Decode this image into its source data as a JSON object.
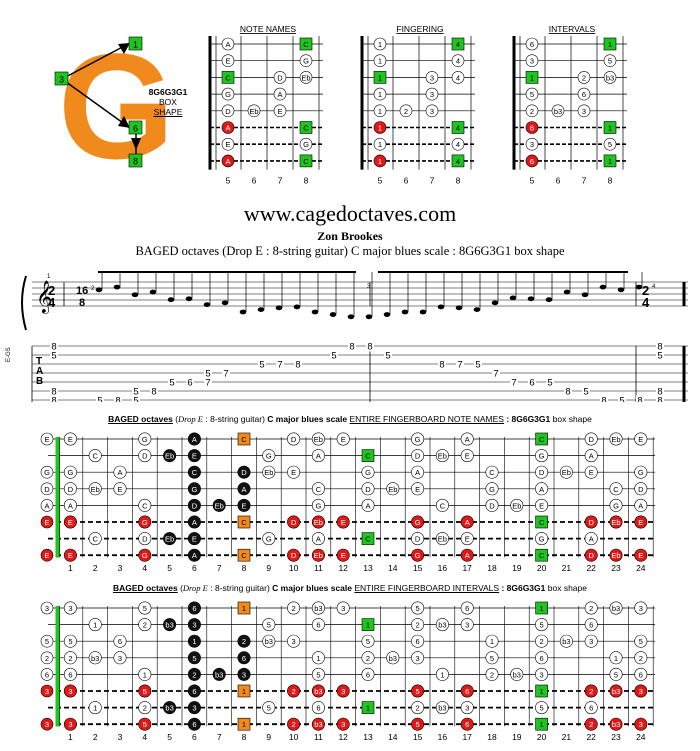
{
  "logo": {
    "letter": "G",
    "code": "8G6G3G1",
    "box_word": "BOX",
    "shape_word": "SHAPE",
    "callouts": [
      "1",
      "3",
      "6",
      "8"
    ],
    "letter_color": "#f08a1c",
    "callout_color": "#1fc51f"
  },
  "panels": [
    {
      "title": "NOTE NAMES",
      "rows": [
        [
          "A",
          null,
          null,
          "C"
        ],
        [
          "E",
          null,
          null,
          "G"
        ],
        [
          "C",
          null,
          "D",
          "Eb"
        ],
        [
          "G",
          null,
          "A",
          null
        ],
        [
          "D",
          "Eb",
          "E",
          null
        ],
        [
          "A",
          null,
          null,
          "C"
        ],
        [
          "E",
          null,
          null,
          "G"
        ],
        [
          "A",
          null,
          null,
          "C"
        ]
      ],
      "frets": [
        "5",
        "6",
        "7",
        "8"
      ]
    },
    {
      "title": "FINGERING",
      "rows": [
        [
          "1",
          null,
          null,
          "4"
        ],
        [
          "1",
          null,
          null,
          "4"
        ],
        [
          "1",
          null,
          "3",
          "4"
        ],
        [
          "1",
          null,
          "3",
          null
        ],
        [
          "1",
          "2",
          "3",
          null
        ],
        [
          "1",
          null,
          null,
          "4"
        ],
        [
          "1",
          null,
          null,
          "4"
        ],
        [
          "1",
          null,
          null,
          "4"
        ]
      ],
      "frets": [
        "5",
        "6",
        "7",
        "8"
      ]
    },
    {
      "title": "INTERVALS",
      "rows": [
        [
          "6",
          null,
          null,
          "1"
        ],
        [
          "3",
          null,
          null,
          "5"
        ],
        [
          "1",
          null,
          "2",
          "b3"
        ],
        [
          "5",
          null,
          "6",
          null
        ],
        [
          "2",
          "b3",
          "3",
          null
        ],
        [
          "6",
          null,
          null,
          "1"
        ],
        [
          "3",
          null,
          null,
          "5"
        ],
        [
          "6",
          null,
          null,
          "1"
        ]
      ],
      "frets": [
        "5",
        "6",
        "7",
        "8"
      ]
    }
  ],
  "website": "www.cagedoctaves.com",
  "author": "Zon Brookes",
  "subtitle": "BAGED octaves (Drop E : 8-string guitar) C major blues scale : 8G6G3G1 box shape",
  "staff": {
    "time_start": [
      "2",
      "4"
    ],
    "time_mid": [
      "16",
      "8"
    ],
    "time_end": [
      "2",
      "4"
    ],
    "tab_letters": [
      "T",
      "A",
      "B"
    ],
    "tuning_label": "E-GS",
    "measure_numbers": [
      "1",
      "2",
      "3",
      "4"
    ],
    "tab_strings": [
      [
        "8",
        "",
        "",
        "",
        "",
        "",
        "",
        "",
        "",
        "",
        "",
        "",
        "",
        "",
        "",
        "8",
        "8",
        "",
        "",
        "",
        "",
        "",
        "",
        "",
        "",
        "",
        "",
        "",
        "",
        "",
        "",
        "",
        "8"
      ],
      [
        "5",
        "",
        "",
        "",
        "",
        "",
        "",
        "",
        "",
        "",
        "",
        "",
        "",
        "",
        "5",
        "",
        "",
        "5",
        "",
        "",
        "",
        "",
        "",
        "",
        "",
        "",
        "",
        "",
        "",
        "",
        "",
        "",
        "5"
      ],
      [
        "",
        "",
        "",
        "",
        "",
        "",
        "",
        "",
        "",
        "",
        "5",
        "7",
        "8",
        "",
        "",
        "",
        "",
        "",
        "",
        "",
        "8",
        "7",
        "5",
        "",
        "",
        "",
        "",
        "",
        "",
        "",
        "",
        "",
        ""
      ],
      [
        "",
        "",
        "",
        "",
        "",
        "",
        "",
        "5",
        "7",
        "",
        "",
        "",
        "",
        "",
        "",
        "",
        "",
        "",
        "",
        "",
        "",
        "",
        "",
        "7",
        "",
        "",
        "",
        "",
        "",
        "",
        "",
        "",
        ""
      ],
      [
        "",
        "",
        "",
        "",
        "",
        "5",
        "6",
        "7",
        "",
        "",
        "",
        "",
        "",
        "",
        "",
        "",
        "",
        "",
        "",
        "",
        "",
        "",
        "",
        "",
        "7",
        "6",
        "5",
        "",
        "",
        "",
        "",
        "",
        ""
      ],
      [
        "8",
        "",
        "",
        "5",
        "8",
        "",
        "",
        "",
        "",
        "",
        "",
        "",
        "",
        "",
        "",
        "",
        "",
        "",
        "",
        "",
        "",
        "",
        "",
        "",
        "",
        "",
        "",
        "8",
        "5",
        "",
        "",
        "",
        "8"
      ],
      [
        "8",
        "5",
        "8",
        "5",
        "",
        "",
        "",
        "",
        "",
        "",
        "",
        "",
        "",
        "",
        "",
        "",
        "",
        "",
        "",
        "",
        "",
        "",
        "",
        "",
        "",
        "",
        "",
        "",
        "",
        "8",
        "5",
        "8",
        "8"
      ],
      [
        "8",
        "",
        "",
        "",
        "",
        "",
        "",
        "",
        "",
        "",
        "",
        "",
        "",
        "",
        "",
        "",
        "",
        "",
        "",
        "",
        "",
        "",
        "",
        "",
        "",
        "",
        "",
        "",
        "",
        "",
        "",
        "",
        "8"
      ]
    ]
  },
  "fb_notes": {
    "title_bold": "BAGED octaves",
    "title_italic": "Drop E",
    "title_rest": ": 8-string guitar)",
    "title_scale": "C major blues scale",
    "title_u": "ENTIRE FINGERBOARD NOTE NAMES",
    "title_code": ": 8G6G3G1",
    "title_end": "box shape"
  },
  "fb_intervals": {
    "title_bold": "BAGED octaves",
    "title_italic": "Drop E",
    "title_rest": ": 8-string guitar)",
    "title_scale": "C major blues scale",
    "title_u": "ENTIRE FINGERBOARD INTERVALS",
    "title_code": ": 8G6G3G1",
    "title_end": "box shape"
  },
  "fret_numbers": [
    "1",
    "2",
    "3",
    "4",
    "5",
    "6",
    "7",
    "8",
    "9",
    "10",
    "11",
    "12",
    "13",
    "14",
    "15",
    "16",
    "17",
    "18",
    "19",
    "20",
    "21",
    "22",
    "23",
    "24"
  ],
  "fb_note_rows": [
    [
      "E",
      "",
      "",
      "G",
      "",
      "A",
      "",
      "C",
      "",
      "D",
      "Eb",
      "E",
      "",
      "",
      "G",
      "",
      "A",
      "",
      "",
      "C",
      "",
      "D",
      "Eb",
      "E"
    ],
    [
      "",
      "C",
      "",
      "D",
      "Eb",
      "E",
      "",
      "",
      "G",
      "",
      "A",
      "",
      "C",
      "",
      "D",
      "Eb",
      "E",
      "",
      "",
      "G",
      "",
      "A",
      "",
      ""
    ],
    [
      "G",
      "",
      "A",
      "",
      "",
      "C",
      "",
      "D",
      "Eb",
      "E",
      "",
      "",
      "G",
      "",
      "A",
      "",
      "",
      "C",
      "",
      "D",
      "Eb",
      "E",
      "",
      "G"
    ],
    [
      "D",
      "Eb",
      "E",
      "",
      "",
      "G",
      "",
      "A",
      "",
      "",
      "C",
      "",
      "D",
      "Eb",
      "E",
      "",
      "",
      "G",
      "",
      "A",
      "",
      "",
      "C",
      "D"
    ],
    [
      "A",
      "",
      "",
      "C",
      "",
      "D",
      "Eb",
      "E",
      "",
      "",
      "G",
      "",
      "A",
      "",
      "",
      "C",
      "",
      "D",
      "Eb",
      "E",
      "",
      "",
      "G",
      "A"
    ],
    [
      "E",
      "",
      "",
      "G",
      "",
      "A",
      "",
      "C",
      "",
      "D",
      "Eb",
      "E",
      "",
      "",
      "G",
      "",
      "A",
      "",
      "",
      "C",
      "",
      "D",
      "Eb",
      "E"
    ],
    [
      "",
      "C",
      "",
      "D",
      "Eb",
      "E",
      "",
      "",
      "G",
      "",
      "A",
      "",
      "C",
      "",
      "D",
      "Eb",
      "E",
      "",
      "",
      "G",
      "",
      "A",
      "",
      ""
    ],
    [
      "E",
      "",
      "",
      "G",
      "",
      "A",
      "",
      "C",
      "",
      "D",
      "Eb",
      "E",
      "",
      "",
      "G",
      "",
      "A",
      "",
      "",
      "C",
      "",
      "D",
      "Eb",
      "E"
    ]
  ],
  "fb_interval_rows": [
    [
      "3",
      "",
      "",
      "5",
      "",
      "6",
      "",
      "1",
      "",
      "2",
      "b3",
      "3",
      "",
      "",
      "5",
      "",
      "6",
      "",
      "",
      "1",
      "",
      "2",
      "b3",
      "3"
    ],
    [
      "",
      "1",
      "",
      "2",
      "b3",
      "3",
      "",
      "",
      "5",
      "",
      "6",
      "",
      "1",
      "",
      "2",
      "b3",
      "3",
      "",
      "",
      "5",
      "",
      "6",
      "",
      ""
    ],
    [
      "5",
      "",
      "6",
      "",
      "",
      "1",
      "",
      "2",
      "b3",
      "3",
      "",
      "",
      "5",
      "",
      "6",
      "",
      "",
      "1",
      "",
      "2",
      "b3",
      "3",
      "",
      "5"
    ],
    [
      "2",
      "b3",
      "3",
      "",
      "",
      "5",
      "",
      "6",
      "",
      "",
      "1",
      "",
      "2",
      "b3",
      "3",
      "",
      "",
      "5",
      "",
      "6",
      "",
      "",
      "1",
      "2"
    ],
    [
      "6",
      "",
      "",
      "1",
      "",
      "2",
      "b3",
      "3",
      "",
      "",
      "5",
      "",
      "6",
      "",
      "",
      "1",
      "",
      "2",
      "b3",
      "3",
      "",
      "",
      "5",
      "6"
    ],
    [
      "3",
      "",
      "",
      "5",
      "",
      "6",
      "",
      "1",
      "",
      "2",
      "b3",
      "3",
      "",
      "",
      "5",
      "",
      "6",
      "",
      "",
      "1",
      "",
      "2",
      "b3",
      "3"
    ],
    [
      "",
      "1",
      "",
      "2",
      "b3",
      "3",
      "",
      "",
      "5",
      "",
      "6",
      "",
      "1",
      "",
      "2",
      "b3",
      "3",
      "",
      "",
      "5",
      "",
      "6",
      "",
      ""
    ],
    [
      "3",
      "",
      "",
      "5",
      "",
      "6",
      "",
      "1",
      "",
      "2",
      "b3",
      "3",
      "",
      "",
      "5",
      "",
      "6",
      "",
      "",
      "1",
      "",
      "2",
      "b3",
      "3"
    ]
  ],
  "fb_open": {
    "notes": [
      "E",
      "",
      "G",
      "D",
      "A",
      "E",
      "",
      "E"
    ],
    "intervals": [
      "3",
      "",
      "5",
      "2",
      "6",
      "3",
      "",
      "3"
    ]
  },
  "colors": {
    "root": "#1fc51f",
    "red": "#e01818",
    "black": "#111111",
    "orange": "#f08a1c",
    "gray": "#777777"
  }
}
